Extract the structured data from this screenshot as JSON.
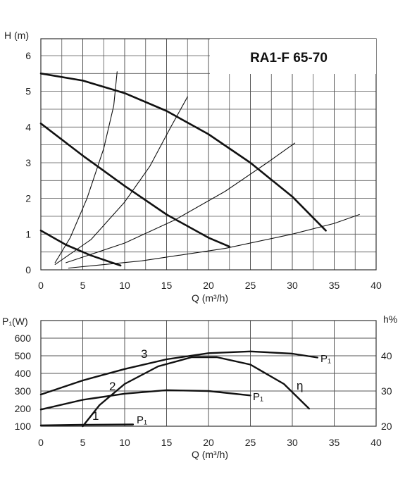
{
  "chart_data": [
    {
      "type": "line",
      "title": "RA1-F 65-70",
      "ylabel": "H (m)",
      "xlabel": "Q (m³/h)",
      "xlim": [
        0,
        40
      ],
      "ylim": [
        0,
        6.5
      ],
      "x_ticks": [
        "0",
        "5",
        "10",
        "15",
        "20",
        "25",
        "30",
        "35",
        "40"
      ],
      "y_ticks": [
        "0",
        "1",
        "2",
        "3",
        "4",
        "5",
        "6"
      ],
      "grid": true,
      "series": [
        {
          "points": [
            [
              0,
              5.5
            ],
            [
              5,
              5.3
            ],
            [
              10,
              4.95
            ],
            [
              15,
              4.45
            ],
            [
              20,
              3.8
            ],
            [
              25,
              3.0
            ],
            [
              30,
              2.05
            ],
            [
              34,
              1.1
            ]
          ],
          "weight": "thick"
        },
        {
          "points": [
            [
              0,
              4.1
            ],
            [
              5,
              3.2
            ],
            [
              10,
              2.35
            ],
            [
              15,
              1.55
            ],
            [
              20,
              0.9
            ],
            [
              22.5,
              0.65
            ]
          ],
          "weight": "thick"
        },
        {
          "points": [
            [
              0,
              1.1
            ],
            [
              3,
              0.7
            ],
            [
              6,
              0.4
            ],
            [
              9.5,
              0.12
            ]
          ],
          "weight": "thick"
        },
        {
          "points": [
            [
              1.7,
              0.2
            ],
            [
              3.5,
              0.9
            ],
            [
              5.5,
              2.0
            ],
            [
              7.5,
              3.4
            ],
            [
              8.7,
              4.6
            ],
            [
              9.1,
              5.55
            ]
          ],
          "weight": "thin"
        },
        {
          "points": [
            [
              1.7,
              0.15
            ],
            [
              6,
              0.85
            ],
            [
              10,
              1.9
            ],
            [
              13,
              2.9
            ],
            [
              15.5,
              4.0
            ],
            [
              17.5,
              4.85
            ]
          ],
          "weight": "thin"
        },
        {
          "points": [
            [
              3,
              0.2
            ],
            [
              10,
              0.75
            ],
            [
              16,
              1.4
            ],
            [
              22,
              2.2
            ],
            [
              27,
              3.0
            ],
            [
              30.3,
              3.55
            ]
          ],
          "weight": "thin"
        },
        {
          "points": [
            [
              3.3,
              0.05
            ],
            [
              12,
              0.25
            ],
            [
              22,
              0.6
            ],
            [
              30,
              1.0
            ],
            [
              35,
              1.3
            ],
            [
              38,
              1.55
            ]
          ],
          "weight": "thin"
        }
      ]
    },
    {
      "type": "line",
      "ylabel": "P₁(W)",
      "ylabel_right": "h%",
      "xlabel": "Q (m³/h)",
      "xlim": [
        0,
        40
      ],
      "ylim": [
        100,
        700
      ],
      "ylim_right": [
        20,
        44
      ],
      "x_ticks": [
        "0",
        "5",
        "10",
        "15",
        "20",
        "25",
        "30",
        "35",
        "40"
      ],
      "y_ticks": [
        "100",
        "200",
        "300",
        "400",
        "500",
        "600"
      ],
      "y_ticks_right": [
        "20",
        "30",
        "40"
      ],
      "grid": true,
      "series": [
        {
          "name": "P₁",
          "axis": "left",
          "points": [
            [
              0,
              280
            ],
            [
              5,
              360
            ],
            [
              10,
              425
            ],
            [
              15,
              480
            ],
            [
              20,
              515
            ],
            [
              25,
              525
            ],
            [
              30,
              512
            ],
            [
              33,
              490
            ]
          ]
        },
        {
          "name": "P₁",
          "axis": "left",
          "points": [
            [
              0,
              195
            ],
            [
              5,
              250
            ],
            [
              10,
              285
            ],
            [
              15,
              305
            ],
            [
              20,
              300
            ],
            [
              25,
              275
            ]
          ]
        },
        {
          "name": "P₁",
          "axis": "left",
          "points": [
            [
              0,
              105
            ],
            [
              5,
              108
            ],
            [
              11,
              110
            ]
          ]
        },
        {
          "name": "η",
          "axis": "right",
          "points": [
            [
              5,
              20
            ],
            [
              7,
              26
            ],
            [
              10,
              32
            ],
            [
              14,
              37
            ],
            [
              18,
              39.6
            ],
            [
              21,
              39.6
            ],
            [
              25,
              37.5
            ],
            [
              29,
              32
            ],
            [
              32,
              25
            ]
          ]
        }
      ],
      "annotations": [
        "1",
        "2",
        "3",
        "η"
      ]
    }
  ]
}
